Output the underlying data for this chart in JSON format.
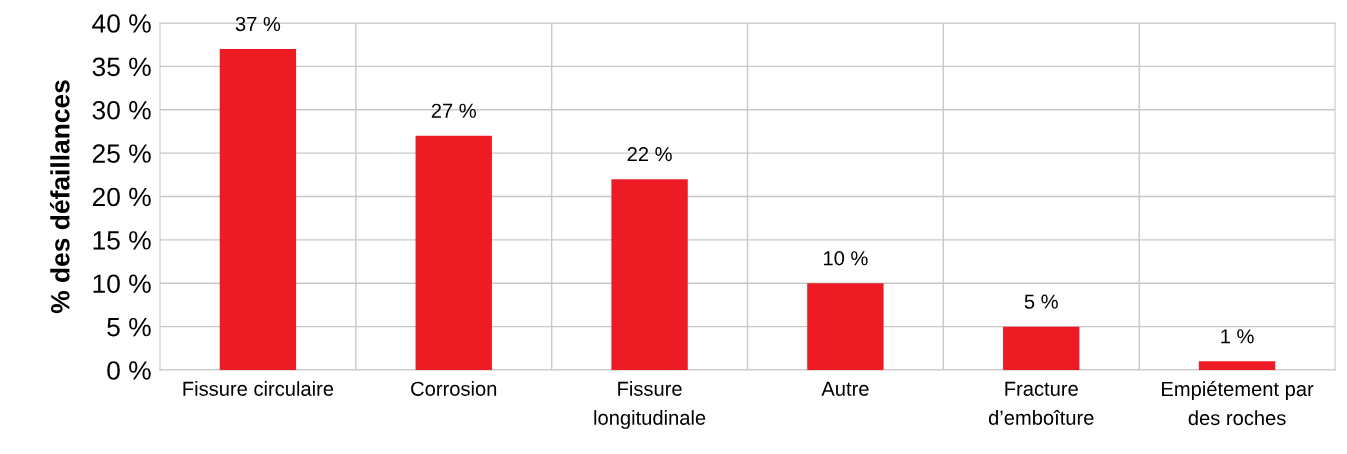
{
  "chart_data": {
    "type": "bar",
    "ylabel": "% des défaillances",
    "categories": [
      "Fissure circulaire",
      "Corrosion",
      "Fissure\nlongitudinale",
      "Autre",
      "Fracture\nd’emboîture",
      "Empiétement par\ndes roches"
    ],
    "values": [
      37,
      27,
      22,
      10,
      5,
      1
    ],
    "color": "#ed1c24",
    "value_labels": [
      "37 %",
      "27 %",
      "22 %",
      "10 %",
      "5 %",
      "1 %"
    ],
    "ylim": [
      0,
      40
    ],
    "yticks": [
      {
        "value": 0,
        "label": "0 %"
      },
      {
        "value": 5,
        "label": "5 %"
      },
      {
        "value": 10,
        "label": "10 %"
      },
      {
        "value": 15,
        "label": "15 %"
      },
      {
        "value": 20,
        "label": "20 %"
      },
      {
        "value": 25,
        "label": "25 %"
      },
      {
        "value": 30,
        "label": "30 %"
      },
      {
        "value": 35,
        "label": "35 %"
      },
      {
        "value": 40,
        "label": "40 %"
      }
    ],
    "grid": true,
    "legend": false
  }
}
